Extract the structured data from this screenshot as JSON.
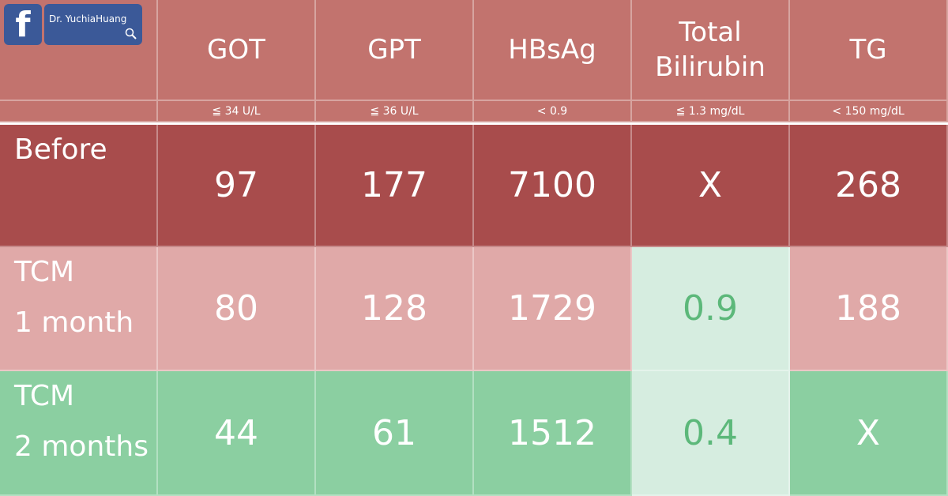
{
  "header": {
    "badge": "Dr. YuchiaHuang"
  },
  "table": {
    "columns": [
      "GOT",
      "GPT",
      "HBsAg",
      "Total Bilirubin",
      "TG"
    ],
    "references": [
      "≦ 34 U/L",
      "≦ 36 U/L",
      "< 0.9",
      "≦ 1.3 mg/dL",
      "< 150 mg/dL"
    ],
    "rows": [
      {
        "label_lines": [
          "Before"
        ],
        "cells": [
          97,
          177,
          7100,
          "X",
          268
        ]
      },
      {
        "label_lines": [
          "TCM",
          "1 month"
        ],
        "cells": [
          80,
          128,
          1729,
          0.9,
          188
        ]
      },
      {
        "label_lines": [
          "TCM",
          "2 months"
        ],
        "cells": [
          44,
          61,
          1512,
          0.4,
          "X"
        ]
      }
    ]
  }
}
